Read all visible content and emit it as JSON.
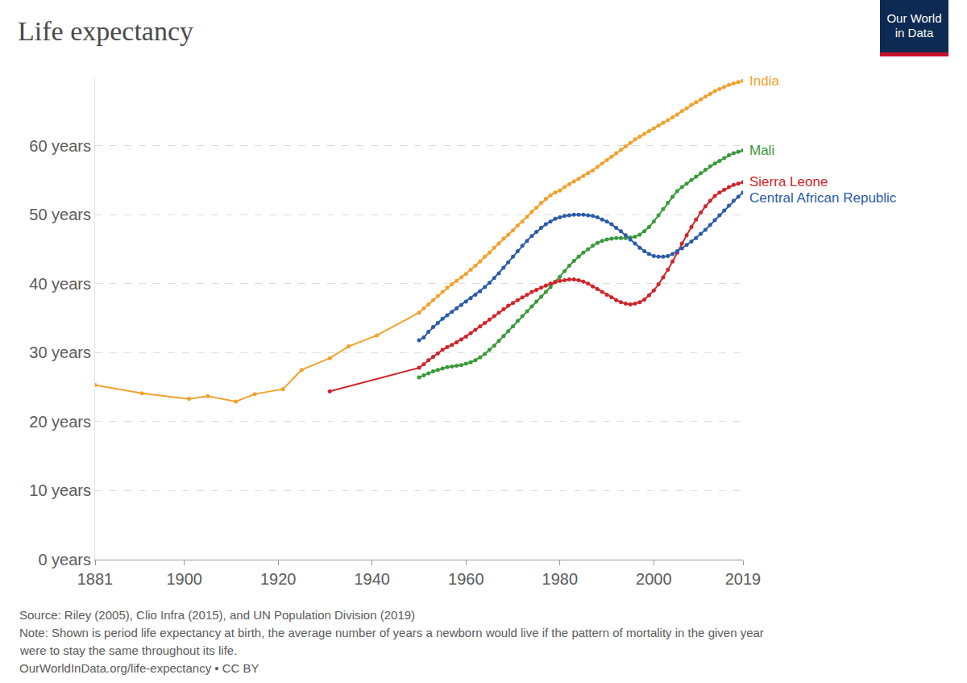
{
  "chart_data": {
    "type": "line",
    "title": "Life expectancy",
    "logo": [
      "Our World",
      "in Data"
    ],
    "notes": [
      "Source: Riley (2005), Clio Infra (2015), and UN Population Division (2019)",
      "Note: Shown is period life expectancy at birth, the average number of years a newborn would live if the pattern of mortality in the given year",
      "were to stay the same throughout its life.",
      "OurWorldInData.org/life-expectancy • CC BY"
    ],
    "xlim": [
      1881,
      2019
    ],
    "xticks": [
      1881,
      1900,
      1920,
      1940,
      1960,
      1980,
      2000,
      2019
    ],
    "ylim": [
      0,
      70
    ],
    "yticks": [
      {
        "value": 0,
        "label": "0 years"
      },
      {
        "value": 10,
        "label": "10 years"
      },
      {
        "value": 20,
        "label": "20 years"
      },
      {
        "value": 30,
        "label": "30 years"
      },
      {
        "value": 40,
        "label": "40 years"
      },
      {
        "value": 50,
        "label": "50 years"
      },
      {
        "value": 60,
        "label": "60 years"
      }
    ],
    "grid": true,
    "marker": "circle",
    "line_style": "solid",
    "series": [
      {
        "name": "India",
        "color": "#f0a22e",
        "x": [
          1881,
          1891,
          1901,
          1905,
          1911,
          1915,
          1921,
          1925,
          1931,
          1935,
          1941,
          1950,
          1951,
          1952,
          1953,
          1954,
          1955,
          1956,
          1957,
          1958,
          1959,
          1960,
          1961,
          1962,
          1963,
          1964,
          1965,
          1966,
          1967,
          1968,
          1969,
          1970,
          1971,
          1972,
          1973,
          1974,
          1975,
          1976,
          1977,
          1978,
          1979,
          1980,
          1981,
          1982,
          1983,
          1984,
          1985,
          1986,
          1987,
          1988,
          1989,
          1990,
          1991,
          1992,
          1993,
          1994,
          1995,
          1996,
          1997,
          1998,
          1999,
          2000,
          2001,
          2002,
          2003,
          2004,
          2005,
          2006,
          2007,
          2008,
          2009,
          2010,
          2011,
          2012,
          2013,
          2014,
          2015,
          2016,
          2017,
          2018,
          2019
        ],
        "values": [
          25.3,
          24.1,
          23.3,
          23.7,
          22.9,
          24.0,
          24.7,
          27.5,
          29.2,
          30.9,
          32.5,
          35.8,
          36.4,
          37.0,
          37.6,
          38.2,
          38.8,
          39.4,
          39.9,
          40.4,
          40.9,
          41.4,
          42.0,
          42.6,
          43.2,
          43.9,
          44.5,
          45.2,
          45.8,
          46.5,
          47.1,
          47.7,
          48.4,
          49.0,
          49.7,
          50.4,
          51.0,
          51.7,
          52.3,
          52.8,
          53.2,
          53.5,
          54.0,
          54.4,
          54.8,
          55.2,
          55.6,
          56.0,
          56.4,
          56.9,
          57.4,
          57.9,
          58.4,
          58.9,
          59.4,
          59.9,
          60.4,
          60.9,
          61.3,
          61.7,
          62.1,
          62.5,
          62.9,
          63.3,
          63.7,
          64.1,
          64.5,
          65.0,
          65.4,
          65.9,
          66.3,
          66.7,
          67.1,
          67.5,
          67.9,
          68.2,
          68.5,
          68.8,
          69.0,
          69.2,
          69.4
        ]
      },
      {
        "name": "Mali",
        "color": "#3a9a3a",
        "x": [
          1950,
          1951,
          1952,
          1953,
          1954,
          1955,
          1956,
          1957,
          1958,
          1959,
          1960,
          1961,
          1962,
          1963,
          1964,
          1965,
          1966,
          1967,
          1968,
          1969,
          1970,
          1971,
          1972,
          1973,
          1974,
          1975,
          1976,
          1977,
          1978,
          1979,
          1980,
          1981,
          1982,
          1983,
          1984,
          1985,
          1986,
          1987,
          1988,
          1989,
          1990,
          1991,
          1992,
          1993,
          1994,
          1995,
          1996,
          1997,
          1998,
          1999,
          2000,
          2001,
          2002,
          2003,
          2004,
          2005,
          2006,
          2007,
          2008,
          2009,
          2010,
          2011,
          2012,
          2013,
          2014,
          2015,
          2016,
          2017,
          2018,
          2019
        ],
        "values": [
          26.4,
          26.7,
          27.0,
          27.3,
          27.5,
          27.7,
          27.9,
          28.0,
          28.1,
          28.2,
          28.4,
          28.6,
          28.9,
          29.3,
          29.8,
          30.4,
          31.0,
          31.7,
          32.4,
          33.1,
          33.8,
          34.6,
          35.3,
          36.0,
          36.7,
          37.4,
          38.1,
          38.8,
          39.5,
          40.3,
          41.0,
          41.8,
          42.6,
          43.3,
          43.9,
          44.5,
          45.0,
          45.5,
          45.9,
          46.2,
          46.4,
          46.5,
          46.6,
          46.6,
          46.6,
          46.7,
          46.8,
          47.1,
          47.6,
          48.2,
          49.0,
          49.9,
          50.8,
          51.7,
          52.6,
          53.4,
          54.0,
          54.5,
          55.0,
          55.5,
          56.0,
          56.5,
          57.0,
          57.4,
          57.8,
          58.2,
          58.6,
          58.9,
          59.1,
          59.3
        ]
      },
      {
        "name": "Sierra Leone",
        "color": "#d0242b",
        "x": [
          1931,
          1950,
          1951,
          1952,
          1953,
          1954,
          1955,
          1956,
          1957,
          1958,
          1959,
          1960,
          1961,
          1962,
          1963,
          1964,
          1965,
          1966,
          1967,
          1968,
          1969,
          1970,
          1971,
          1972,
          1973,
          1974,
          1975,
          1976,
          1977,
          1978,
          1979,
          1980,
          1981,
          1982,
          1983,
          1984,
          1985,
          1986,
          1987,
          1988,
          1989,
          1990,
          1991,
          1992,
          1993,
          1994,
          1995,
          1996,
          1997,
          1998,
          1999,
          2000,
          2001,
          2002,
          2003,
          2004,
          2005,
          2006,
          2007,
          2008,
          2009,
          2010,
          2011,
          2012,
          2013,
          2014,
          2015,
          2016,
          2017,
          2018,
          2019
        ],
        "values": [
          24.4,
          27.8,
          28.3,
          28.9,
          29.4,
          29.9,
          30.4,
          30.8,
          31.1,
          31.5,
          31.9,
          32.3,
          32.8,
          33.3,
          33.8,
          34.3,
          34.8,
          35.3,
          35.8,
          36.3,
          36.8,
          37.2,
          37.6,
          38.0,
          38.4,
          38.8,
          39.1,
          39.4,
          39.7,
          40.0,
          40.2,
          40.4,
          40.5,
          40.6,
          40.6,
          40.5,
          40.3,
          40.0,
          39.6,
          39.2,
          38.8,
          38.4,
          38.0,
          37.6,
          37.3,
          37.1,
          37.0,
          37.1,
          37.3,
          37.7,
          38.3,
          39.0,
          39.9,
          40.9,
          42.0,
          43.2,
          44.5,
          45.8,
          47.0,
          48.2,
          49.3,
          50.3,
          51.2,
          52.0,
          52.7,
          53.2,
          53.6,
          54.0,
          54.3,
          54.5,
          54.7
        ]
      },
      {
        "name": "Central African Republic",
        "color": "#2a5ca8",
        "x": [
          1950,
          1951,
          1952,
          1953,
          1954,
          1955,
          1956,
          1957,
          1958,
          1959,
          1960,
          1961,
          1962,
          1963,
          1964,
          1965,
          1966,
          1967,
          1968,
          1969,
          1970,
          1971,
          1972,
          1973,
          1974,
          1975,
          1976,
          1977,
          1978,
          1979,
          1980,
          1981,
          1982,
          1983,
          1984,
          1985,
          1986,
          1987,
          1988,
          1989,
          1990,
          1991,
          1992,
          1993,
          1994,
          1995,
          1996,
          1997,
          1998,
          1999,
          2000,
          2001,
          2002,
          2003,
          2004,
          2005,
          2006,
          2007,
          2008,
          2009,
          2010,
          2011,
          2012,
          2013,
          2014,
          2015,
          2016,
          2017,
          2018,
          2019
        ],
        "values": [
          31.8,
          32.2,
          33.0,
          33.7,
          34.3,
          34.9,
          35.4,
          35.9,
          36.4,
          36.9,
          37.4,
          37.9,
          38.4,
          38.9,
          39.5,
          40.1,
          40.8,
          41.5,
          42.3,
          43.1,
          43.9,
          44.7,
          45.5,
          46.2,
          46.9,
          47.5,
          48.1,
          48.6,
          49.0,
          49.4,
          49.6,
          49.8,
          49.9,
          50.0,
          50.0,
          50.0,
          49.9,
          49.8,
          49.6,
          49.3,
          49.0,
          48.6,
          48.1,
          47.6,
          47.0,
          46.4,
          45.8,
          45.2,
          44.7,
          44.3,
          44.0,
          43.9,
          43.9,
          44.0,
          44.3,
          44.7,
          45.1,
          45.6,
          46.1,
          46.6,
          47.2,
          47.8,
          48.5,
          49.2,
          49.9,
          50.6,
          51.3,
          52.0,
          52.6,
          53.2
        ]
      }
    ]
  }
}
